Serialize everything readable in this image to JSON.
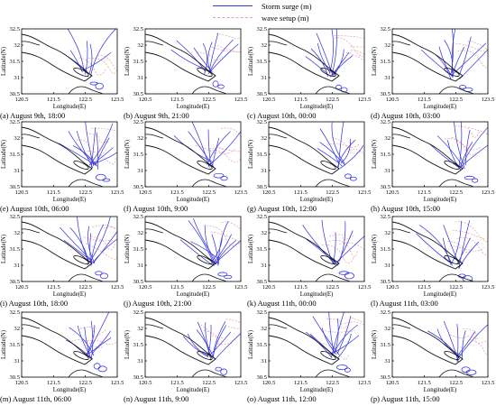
{
  "legend": {
    "storm_surge": {
      "label": "Storm surge (m)",
      "color": "#3a3ae0"
    },
    "wave_setup": {
      "label": "wave setup (m)",
      "color": "#e8a0a0"
    }
  },
  "axes": {
    "xlabel": "Longitude(E)",
    "ylabel": "Latitude(N)",
    "xticks": [
      "120.5",
      "121.5",
      "122.5",
      "123.5"
    ],
    "yticks": [
      "32.5",
      "32",
      "31.5",
      "31",
      "30.5"
    ],
    "xlim": [
      120.5,
      123.5
    ],
    "ylim": [
      30.5,
      32.5
    ]
  },
  "coast_color": "#111111",
  "panels": [
    {
      "caption": "(a) August 9th, 18:00"
    },
    {
      "caption": "(b) August 9th, 21:00"
    },
    {
      "caption": "(c) August 10th, 00:00"
    },
    {
      "caption": "(d) August 10th, 03:00"
    },
    {
      "caption": "(e) August 10th, 06:00"
    },
    {
      "caption": "(f) August 10th, 9:00"
    },
    {
      "caption": "(g) August 10th, 12:00"
    },
    {
      "caption": "(h) August 10th, 15:00"
    },
    {
      "caption": "(i) August 10th, 18:00"
    },
    {
      "caption": "(j) August 10th, 21:00"
    },
    {
      "caption": "(k) August 11th, 00:00"
    },
    {
      "caption": "(l) August 11th, 03:00"
    },
    {
      "caption": "(m) August 11th, 06:00"
    },
    {
      "caption": "(n) August 11th, 9:00"
    },
    {
      "caption": "(o) August 11th, 12:00"
    },
    {
      "caption": "(p) August 11th, 15:00"
    }
  ]
}
